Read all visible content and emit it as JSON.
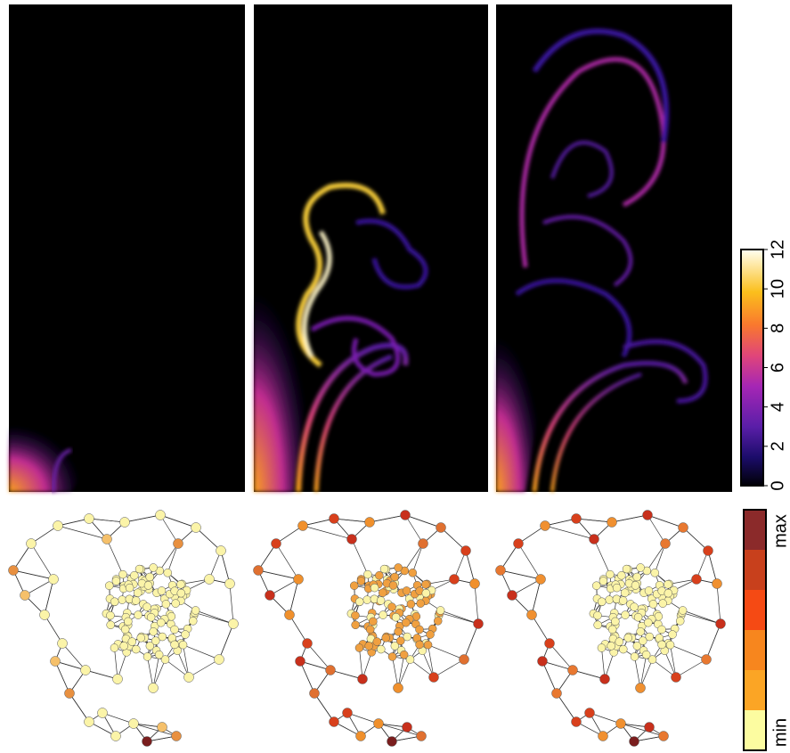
{
  "colorbar": {
    "ylim": [
      0,
      12
    ],
    "yticks": [
      0,
      2,
      4,
      6,
      8,
      10,
      12
    ]
  },
  "legend": {
    "max_label": "max",
    "min_label": "min"
  }
}
